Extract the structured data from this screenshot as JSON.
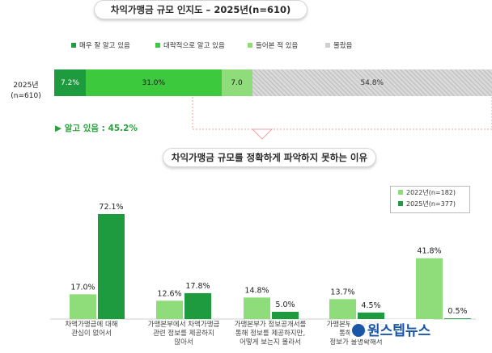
{
  "chart_data": [
    {
      "type": "bar",
      "stacked": true,
      "orientation": "horizontal",
      "title": "차익가맹금 규모 인지도 – 2025년(n=610)",
      "categories": [
        "2025년\n(n=610)"
      ],
      "series": [
        {
          "name": "매우 잘 알고 있음",
          "values": [
            7.2
          ],
          "label": "7.2%",
          "color": "#1e9a3f"
        },
        {
          "name": "대략적으로 알고 있음",
          "values": [
            31.0
          ],
          "label": "31.0%",
          "color": "#3dc93d"
        },
        {
          "name": "들어본 적 있음",
          "values": [
            7.0
          ],
          "label": "7.0",
          "color": "#8fdc7a"
        },
        {
          "name": "몰랐음",
          "values": [
            54.8
          ],
          "label": "54.8%",
          "color": "#d6d6d6"
        }
      ],
      "annotation": "▶ 알고 있음 : 45.2%",
      "xlim": [
        0,
        100
      ]
    },
    {
      "type": "bar",
      "title": "차익가맹금 규모를 정확하게 파악하지 못하는 이유",
      "categories": [
        "차액가맹금에 대해\n관심이 없어서",
        "가맹본부에서 차액가맹금\n관련 정보를 제공하지\n않아서",
        "가맹본부가 정보공개서를\n통해 정보를 제공하지만,\n어떻게 보는지 몰라서",
        "가맹본부가 제공하는\n통해 정보가\n정보가 불명확해서",
        ""
      ],
      "series": [
        {
          "name": "2022년(n=182)",
          "values": [
            17.0,
            12.6,
            14.8,
            13.7,
            41.8
          ],
          "labels": [
            "17.0%",
            "12.6%",
            "14.8%",
            "13.7%",
            "41.8%"
          ],
          "color": "#8fdc7a"
        },
        {
          "name": "2025년(n=377)",
          "values": [
            72.1,
            17.8,
            5.0,
            4.5,
            0.5
          ],
          "labels": [
            "72.1%",
            "17.8%",
            "5.0%",
            "4.5%",
            "0.5%"
          ],
          "color": "#1e9a3f"
        }
      ],
      "ylim": [
        0,
        80
      ],
      "grid": false,
      "legend": "top-right"
    }
  ],
  "row_label": {
    "line1": "2025년",
    "line2": "(n=610)"
  },
  "watermark": "원스텝뉴스",
  "colors": {
    "dark": "#1e9a3f",
    "mid": "#3dc93d",
    "light": "#8fdc7a",
    "grey": "#d6d6d6",
    "accent_text": "#2a9f3b"
  }
}
